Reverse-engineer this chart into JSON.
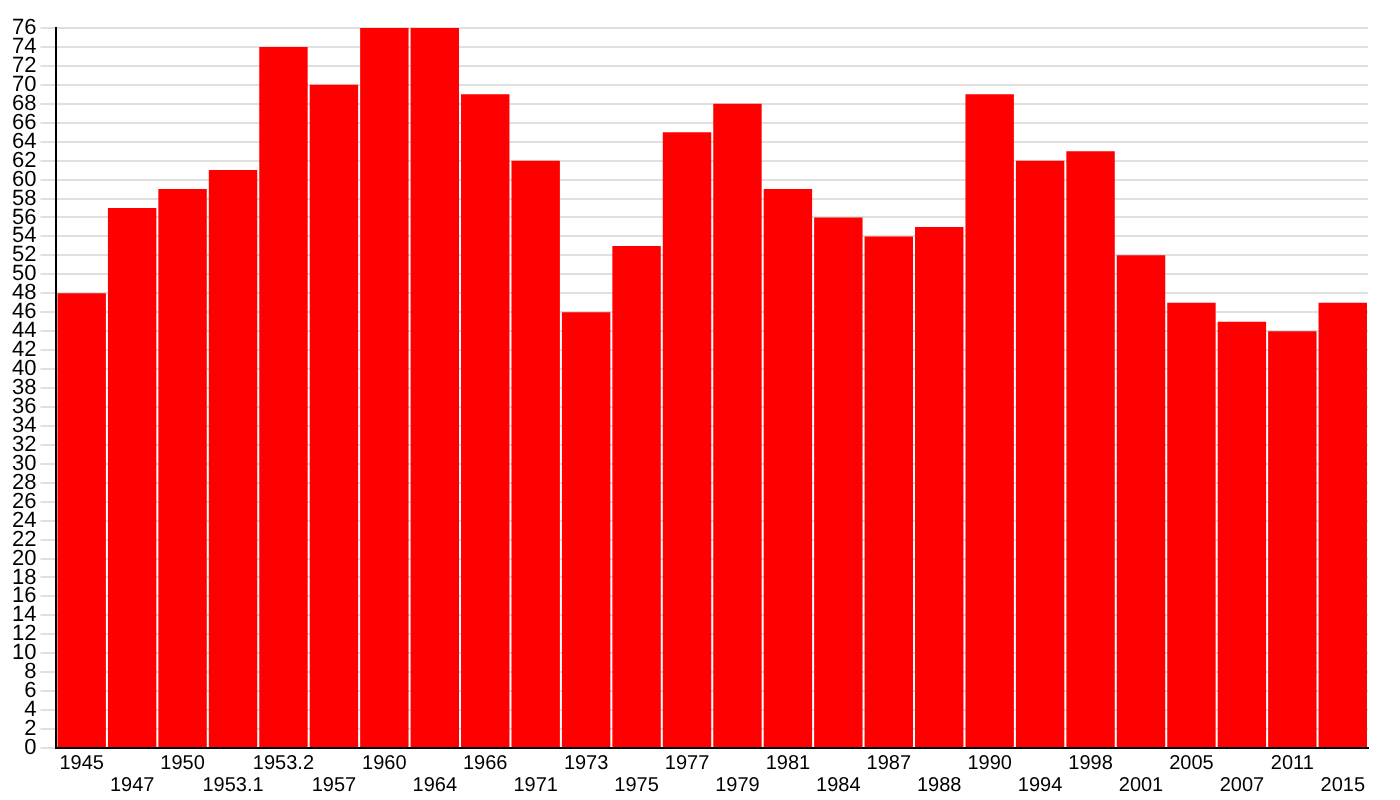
{
  "chart_data": {
    "type": "bar",
    "categories": [
      "1945",
      "1947",
      "1950",
      "1953.1",
      "1953.2",
      "1957",
      "1960",
      "1964",
      "1966",
      "1971",
      "1973",
      "1975",
      "1977",
      "1979",
      "1981",
      "1984",
      "1987",
      "1988",
      "1990",
      "1994",
      "1998",
      "2001",
      "2005",
      "2007",
      "2011",
      "2015"
    ],
    "values": [
      48,
      57,
      59,
      61,
      74,
      70,
      76,
      76,
      69,
      62,
      46,
      53,
      65,
      68,
      59,
      56,
      54,
      55,
      69,
      62,
      63,
      52,
      47,
      45,
      44,
      47
    ],
    "color": "#ff0000",
    "ylim": [
      0,
      76
    ],
    "yticks": [
      0,
      2,
      4,
      6,
      8,
      10,
      12,
      14,
      16,
      18,
      20,
      22,
      24,
      26,
      28,
      30,
      32,
      34,
      36,
      38,
      40,
      42,
      44,
      46,
      48,
      50,
      52,
      54,
      56,
      58,
      60,
      62,
      64,
      66,
      68,
      70,
      72,
      74,
      76
    ],
    "grid": "y"
  }
}
